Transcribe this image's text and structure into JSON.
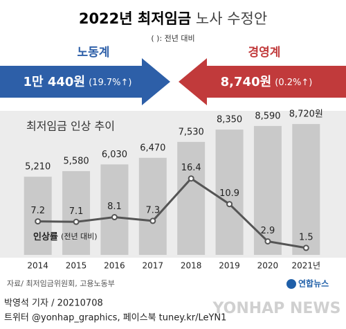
{
  "header": {
    "title_bold": "2022년 최저임금",
    "title_light": "노사 수정안",
    "subtitle": "( ): 전년 대비",
    "labor": {
      "name": "노동계",
      "proposal": "1만 440원",
      "change": "(19.7%↑)"
    },
    "management": {
      "name": "경영계",
      "proposal": "8,740원",
      "change": "(0.2%↑)"
    }
  },
  "chart_data": {
    "type": "bar",
    "title": "최저임금 인상 추이",
    "categories": [
      "2014",
      "2015",
      "2016",
      "2017",
      "2018",
      "2019",
      "2020",
      "2021년"
    ],
    "series": [
      {
        "color": "#c9c9c9",
        "values": [
          5210,
          5580,
          6030,
          6470,
          7530,
          8350,
          8590,
          8720
        ],
        "value_labels": [
          "5,210",
          "5,580",
          "6,030",
          "6,470",
          "7,530",
          "8,350",
          "8,590",
          "8,720원"
        ]
      },
      {
        "name": "인상률",
        "note": "(전년 대비)",
        "type": "line",
        "axis": "y2",
        "color": "#555555",
        "values": [
          7.2,
          7.1,
          8.1,
          7.3,
          16.4,
          10.9,
          2.9,
          1.5
        ]
      }
    ],
    "ylim": [
      0,
      9000
    ],
    "y2lim": [
      0,
      29
    ]
  },
  "footer": {
    "source": "자료/ 최저임금위원회, 고용노동부",
    "logo": "연합뉴스",
    "watermark": "YONHAP NEWS",
    "credit": "박영석 기자 / 20210708",
    "sns": "트위터 @yonhap_graphics, 페이스북 tuney.kr/LeYN1"
  }
}
